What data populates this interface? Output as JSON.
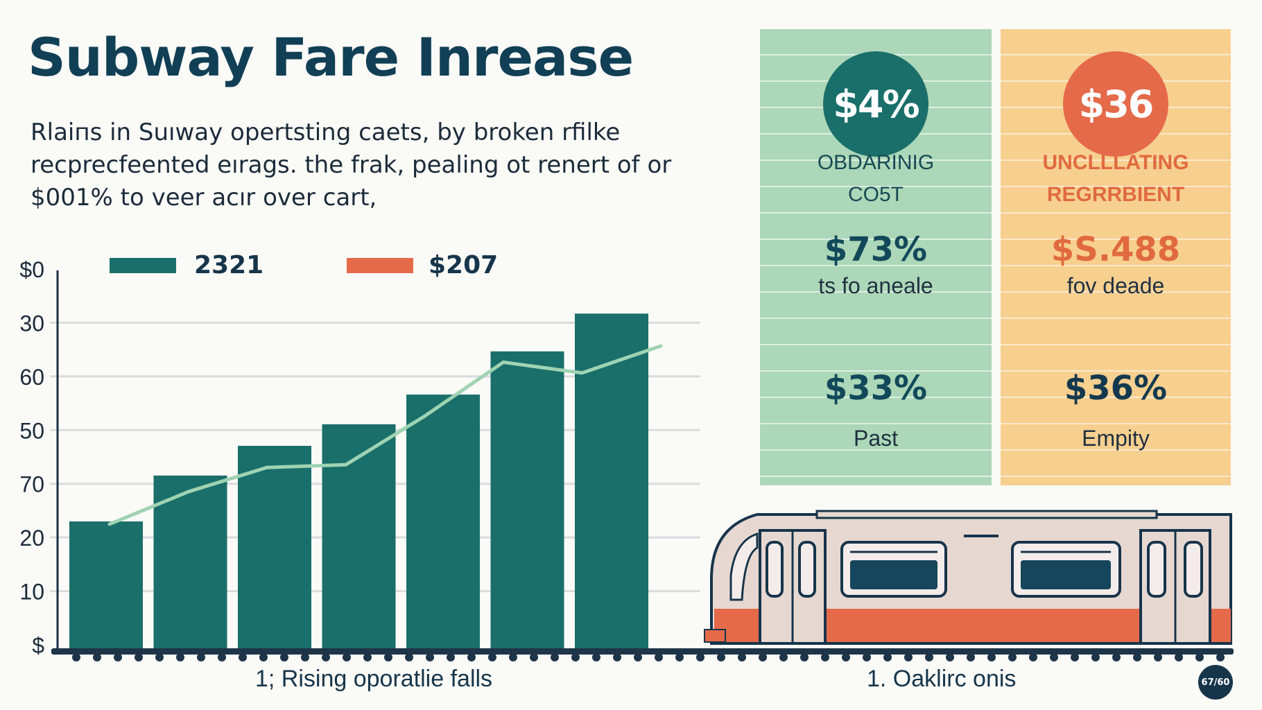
{
  "title": "Subway Fare Inrease",
  "subtitle": "Rlaiпs in Suıway opertsting caets,   by broken rfilke recprecfeented eırags. the frak, pealing ot renert  of or $001% to veer acır over cart,",
  "chart_data": {
    "type": "bar",
    "title": "",
    "xlabel": "",
    "ylabel": "",
    "y_tick_labels": [
      "$0",
      "30",
      "60",
      "50",
      "70",
      "20",
      "10",
      "$"
    ],
    "legend": [
      {
        "label": "2321",
        "color": "#1a6f6a"
      },
      {
        "label": "$207",
        "color": "#e56a4a"
      }
    ],
    "legend_position": "top",
    "grid": true,
    "ylim": [
      0,
      7
    ],
    "series": [
      {
        "name": "2321",
        "kind": "bar",
        "color": "#1a6f6a",
        "values": [
          2.35,
          3.2,
          3.75,
          4.15,
          4.7,
          5.5,
          6.2
        ]
      },
      {
        "kind": "line",
        "color": "#9fd3b2",
        "values": [
          2.3,
          2.9,
          3.35,
          3.4,
          4.3,
          5.3,
          5.1,
          5.6
        ]
      }
    ]
  },
  "panels": {
    "green": {
      "badge": "$4%",
      "label": "OBDARINIG\nCO5T",
      "value1": "$73%",
      "label1": "ts fo aneale",
      "value2": "$33%",
      "label2": "Past"
    },
    "orange": {
      "badge": "$36",
      "label": "UNCLLLATING\nREGRRBIENT",
      "value1": "$S.488",
      "label1": "fov deade",
      "value2": "$36%",
      "label2": "Empity"
    }
  },
  "captions": {
    "left": "1; Rising oporatlie falls",
    "right": "1. Oaklirc onis"
  },
  "corner_badge": "67/60",
  "colors": {
    "teal": "#1a6f6a",
    "coral": "#e56a4a",
    "mint": "#9fd3b2",
    "navy": "#16354a",
    "panel_green": "#acd7b8",
    "panel_orange": "#f7cf8f"
  }
}
